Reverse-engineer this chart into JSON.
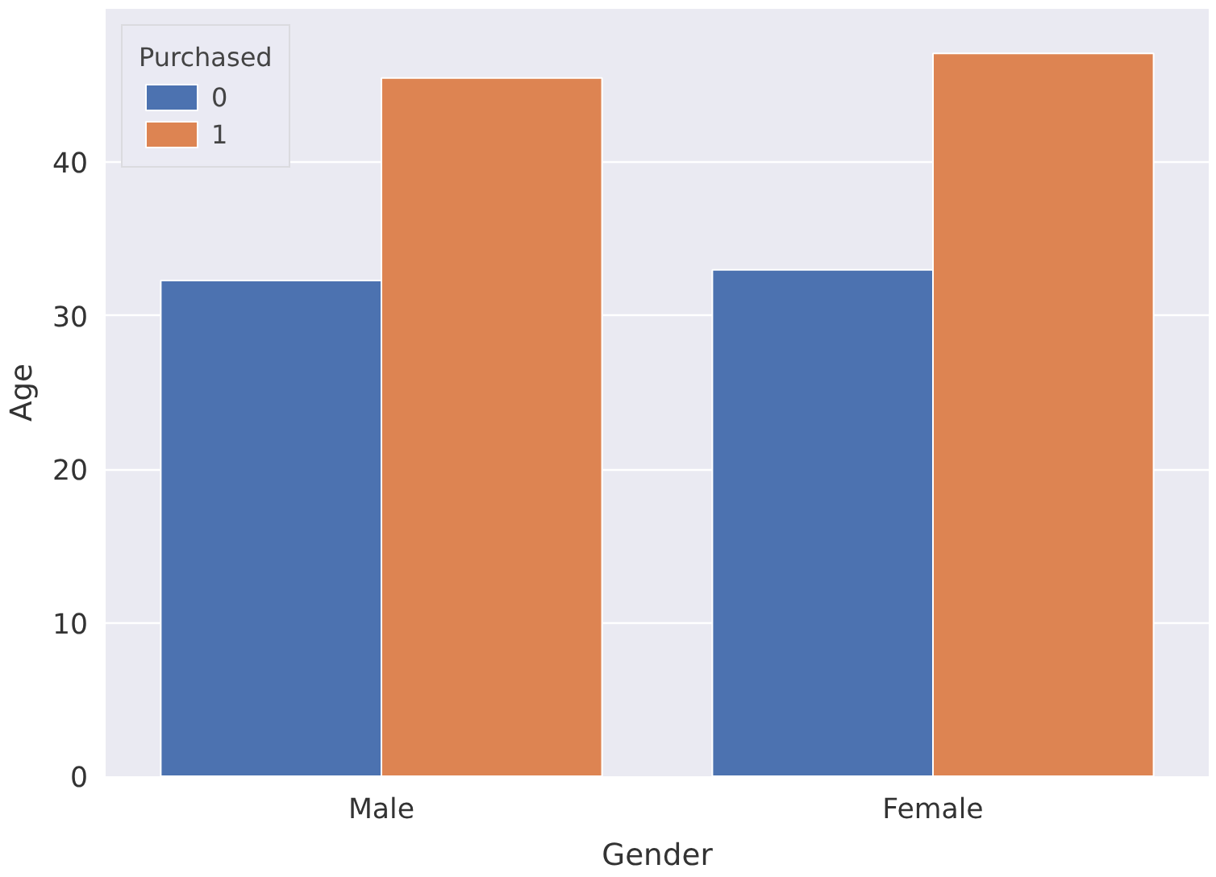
{
  "chart_data": {
    "type": "bar",
    "xlabel": "Gender",
    "ylabel": "Age",
    "legend_title": "Purchased",
    "categories": [
      "Male",
      "Female"
    ],
    "series": [
      {
        "name": "0",
        "color": "#4c72b0",
        "values": [
          32.3,
          33.0
        ]
      },
      {
        "name": "1",
        "color": "#dd8452",
        "values": [
          45.5,
          47.1
        ]
      }
    ],
    "ylim": [
      0,
      50
    ],
    "yticks": [
      0,
      10,
      20,
      30,
      40
    ],
    "grid": "y",
    "legend": "top left"
  }
}
